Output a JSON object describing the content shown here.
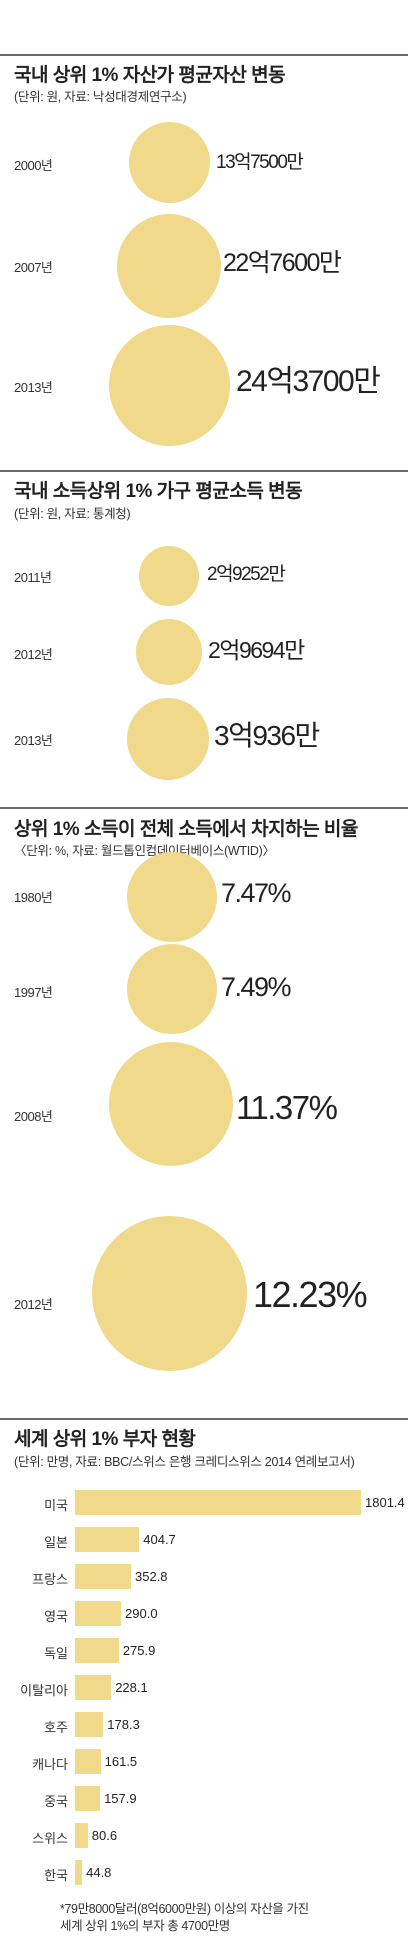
{
  "charts": [
    {
      "title": "국내 상위 1% 자산가 평균자산 변동",
      "subtitle": "(단위: 원, 자료: 낙성대경제연구소)",
      "rows": [
        {
          "label": "2000년",
          "value_text": "13억7500만"
        },
        {
          "label": "2007년",
          "value_text": "22억7600만"
        },
        {
          "label": "2013년",
          "value_text": "24억3700만"
        }
      ]
    },
    {
      "title": "국내 소득상위 1% 가구 평균소득 변동",
      "subtitle": "(단위: 원, 자료: 통계청)",
      "rows": [
        {
          "label": "2011년",
          "value_text": "2억9252만"
        },
        {
          "label": "2012년",
          "value_text": "2억9694만"
        },
        {
          "label": "2013년",
          "value_text": "3억936만"
        }
      ]
    },
    {
      "title": "상위 1% 소득이 전체 소득에서 차지하는 비율",
      "subtitle": "〈단위: %, 자료: 월드톱인컴데이터베이스(WTID)〉",
      "rows": [
        {
          "label": "1980년",
          "value_text": "7.47%"
        },
        {
          "label": "1997년",
          "value_text": "7.49%"
        },
        {
          "label": "2008년",
          "value_text": "11.37%"
        },
        {
          "label": "2012년",
          "value_text": "12.23%"
        }
      ]
    },
    {
      "title": "세계 상위 1% 부자 현황",
      "subtitle": "(단위: 만명, 자료: BBC/스위스 은행 크레디스위스 2014 연례보고서)",
      "footnote_lines": [
        "*79만8000달러(8억6000만원) 이상의 자산을 가진",
        "세계 상위 1%의 부자 총 4700만명"
      ]
    }
  ],
  "chart_data": [
    {
      "type": "bubble",
      "title": "국내 상위 1% 자산가 평균자산 변동",
      "unit": "원",
      "categories": [
        "2000년",
        "2007년",
        "2013년"
      ],
      "values": [
        1375000000,
        2276000000,
        2437000000
      ]
    },
    {
      "type": "bubble",
      "title": "국내 소득상위 1% 가구 평균소득 변동",
      "unit": "원",
      "categories": [
        "2011년",
        "2012년",
        "2013년"
      ],
      "values": [
        292520000,
        296940000,
        309360000
      ]
    },
    {
      "type": "bubble",
      "title": "상위 1% 소득이 전체 소득에서 차지하는 비율",
      "unit": "%",
      "categories": [
        "1980년",
        "1997년",
        "2008년",
        "2012년"
      ],
      "values": [
        7.47,
        7.49,
        11.37,
        12.23
      ]
    },
    {
      "type": "bar",
      "orientation": "horizontal",
      "title": "세계 상위 1% 부자 현황",
      "unit": "만명",
      "categories": [
        "미국",
        "일본",
        "프랑스",
        "영국",
        "독일",
        "이탈리아",
        "호주",
        "캐나다",
        "중국",
        "스위스",
        "한국"
      ],
      "values": [
        1801.4,
        404.7,
        352.8,
        290.0,
        275.9,
        228.1,
        178.3,
        161.5,
        157.9,
        80.6,
        44.8
      ],
      "value_labels": [
        "1801.4",
        "404.7",
        "352.8",
        "290.0",
        "275.9",
        "228.1",
        "178.3",
        "161.5",
        "157.9",
        "80.6",
        "44.8"
      ],
      "colors": {
        "bar": "#f0d98a"
      }
    }
  ],
  "colors": {
    "accent": "#f0d98a",
    "rule": "#6a6a6a"
  }
}
